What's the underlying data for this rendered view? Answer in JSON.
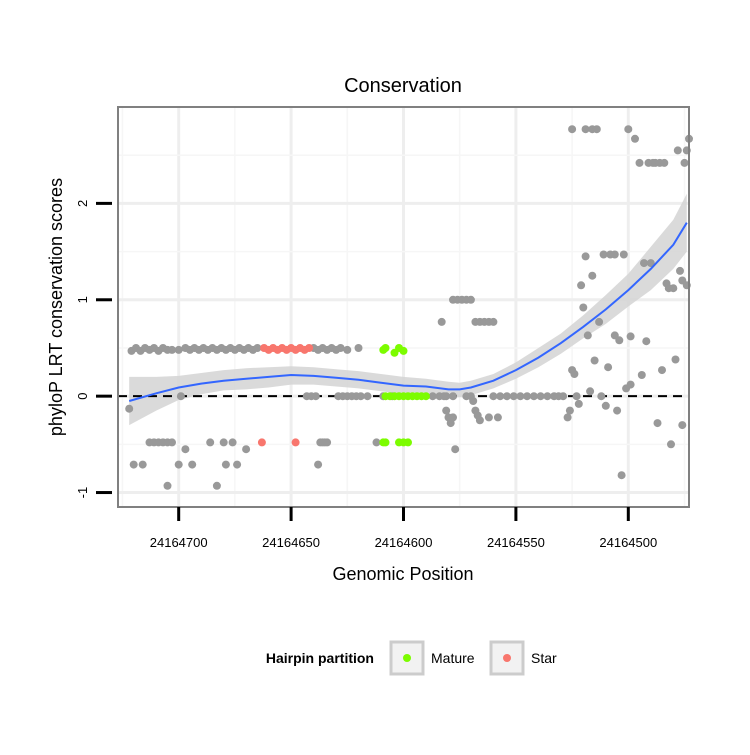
{
  "chart_data": {
    "type": "scatter",
    "title": "Conservation",
    "xlabel": "Genomic Position",
    "ylabel": "phyloP LRT conservation scores",
    "x_reversed": true,
    "xlim": [
      24164727,
      24164473
    ],
    "ylim": [
      -1.15,
      3.0
    ],
    "x_ticks": [
      24164700,
      24164650,
      24164600,
      24164550,
      24164500
    ],
    "x_tick_labels": [
      "24164700",
      "24164650",
      "24164600",
      "24164550",
      "24164500"
    ],
    "y_ticks": [
      -1,
      0,
      1,
      2
    ],
    "y_tick_labels": [
      "-1",
      "0",
      "1",
      "2"
    ],
    "reference_line": {
      "y": 0,
      "style": "dashed"
    },
    "legend": {
      "title": "Hairpin partition",
      "position": "bottom",
      "entries": [
        {
          "label": "Mature",
          "color": "#7CFC00"
        },
        {
          "label": "Star",
          "color": "#F8766D"
        }
      ]
    },
    "colors": {
      "other": "#999999",
      "mature": "#7CFC00",
      "star": "#F8766D",
      "smooth": "#3366FF",
      "band": "#D3D3D3"
    },
    "series": [
      {
        "name": "Other",
        "color": "#999999",
        "points": [
          [
            24164722,
            -0.13
          ],
          [
            24164720,
            -0.71
          ],
          [
            24164716,
            -0.71
          ],
          [
            24164721,
            0.47
          ],
          [
            24164719,
            0.5
          ],
          [
            24164717,
            0.47
          ],
          [
            24164715,
            0.5
          ],
          [
            24164713,
            0.48
          ],
          [
            24164711,
            0.5
          ],
          [
            24164709,
            0.47
          ],
          [
            24164707,
            0.5
          ],
          [
            24164705,
            0.48
          ],
          [
            24164703,
            0.48
          ],
          [
            24164713,
            -0.48
          ],
          [
            24164711,
            -0.48
          ],
          [
            24164709,
            -0.48
          ],
          [
            24164707,
            -0.48
          ],
          [
            24164705,
            -0.48
          ],
          [
            24164703,
            -0.48
          ],
          [
            24164705,
            -0.93
          ],
          [
            24164700,
            -0.71
          ],
          [
            24164700,
            0.48
          ],
          [
            24164699,
            0.0
          ],
          [
            24164697,
            0.5
          ],
          [
            24164695,
            0.48
          ],
          [
            24164693,
            0.5
          ],
          [
            24164691,
            0.48
          ],
          [
            24164689,
            0.5
          ],
          [
            24164687,
            0.48
          ],
          [
            24164685,
            0.5
          ],
          [
            24164683,
            0.48
          ],
          [
            24164681,
            0.5
          ],
          [
            24164679,
            0.48
          ],
          [
            24164677,
            0.5
          ],
          [
            24164675,
            0.48
          ],
          [
            24164673,
            0.5
          ],
          [
            24164671,
            0.48
          ],
          [
            24164669,
            0.5
          ],
          [
            24164667,
            0.48
          ],
          [
            24164665,
            0.5
          ],
          [
            24164697,
            -0.55
          ],
          [
            24164694,
            -0.71
          ],
          [
            24164686,
            -0.48
          ],
          [
            24164680,
            -0.48
          ],
          [
            24164679,
            -0.71
          ],
          [
            24164676,
            -0.48
          ],
          [
            24164674,
            -0.71
          ],
          [
            24164683,
            -0.93
          ],
          [
            24164670,
            -0.55
          ],
          [
            24164640,
            0.5
          ],
          [
            24164638,
            0.48
          ],
          [
            24164636,
            0.5
          ],
          [
            24164634,
            0.48
          ],
          [
            24164632,
            0.5
          ],
          [
            24164630,
            0.48
          ],
          [
            24164628,
            0.5
          ],
          [
            24164625,
            0.48
          ],
          [
            24164620,
            0.5
          ],
          [
            24164637,
            -0.48
          ],
          [
            24164636,
            -0.48
          ],
          [
            24164638,
            -0.71
          ],
          [
            24164635,
            -0.48
          ],
          [
            24164634,
            -0.48
          ],
          [
            24164629,
            0.0
          ],
          [
            24164627,
            0.0
          ],
          [
            24164625,
            0.0
          ],
          [
            24164623,
            0.0
          ],
          [
            24164621,
            0.0
          ],
          [
            24164619,
            0.0
          ],
          [
            24164616,
            0.0
          ],
          [
            24164612,
            -0.48
          ],
          [
            24164609,
            0.0
          ],
          [
            24164605,
            0.0
          ],
          [
            24164587,
            0.0
          ],
          [
            24164584,
            0.0
          ],
          [
            24164581,
            0.0
          ],
          [
            24164578,
            0.0
          ],
          [
            24164583,
            0.77
          ],
          [
            24164582,
            0.0
          ],
          [
            24164581,
            -0.15
          ],
          [
            24164580,
            -0.22
          ],
          [
            24164579,
            -0.28
          ],
          [
            24164578,
            -0.22
          ],
          [
            24164577,
            -0.55
          ],
          [
            24164578,
            1.0
          ],
          [
            24164576,
            1.0
          ],
          [
            24164574,
            1.0
          ],
          [
            24164572,
            1.0
          ],
          [
            24164570,
            1.0
          ],
          [
            24164572,
            0.0
          ],
          [
            24164570,
            0.0
          ],
          [
            24164569,
            -0.05
          ],
          [
            24164568,
            -0.15
          ],
          [
            24164567,
            -0.2
          ],
          [
            24164566,
            -0.25
          ],
          [
            24164568,
            0.77
          ],
          [
            24164566,
            0.77
          ],
          [
            24164564,
            0.77
          ],
          [
            24164562,
            0.77
          ],
          [
            24164560,
            0.77
          ],
          [
            24164562,
            -0.22
          ],
          [
            24164558,
            -0.22
          ],
          [
            24164560,
            0.0
          ],
          [
            24164557,
            0.0
          ],
          [
            24164554,
            0.0
          ],
          [
            24164551,
            0.0
          ],
          [
            24164548,
            0.0
          ],
          [
            24164545,
            0.0
          ],
          [
            24164542,
            0.0
          ],
          [
            24164539,
            0.0
          ],
          [
            24164536,
            0.0
          ],
          [
            24164533,
            0.0
          ],
          [
            24164531,
            0.0
          ],
          [
            24164529,
            0.0
          ],
          [
            24164527,
            -0.22
          ],
          [
            24164526,
            -0.15
          ],
          [
            24164525,
            0.27
          ],
          [
            24164524,
            0.23
          ],
          [
            24164523,
            0.0
          ],
          [
            24164522,
            -0.08
          ],
          [
            24164521,
            1.15
          ],
          [
            24164520,
            0.92
          ],
          [
            24164519,
            1.45
          ],
          [
            24164518,
            0.63
          ],
          [
            24164517,
            0.05
          ],
          [
            24164516,
            1.25
          ],
          [
            24164515,
            0.37
          ],
          [
            24164525,
            2.77
          ],
          [
            24164519,
            2.77
          ],
          [
            24164516,
            2.77
          ],
          [
            24164514,
            2.77
          ],
          [
            24164513,
            0.77
          ],
          [
            24164512,
            0.0
          ],
          [
            24164511,
            1.47
          ],
          [
            24164510,
            -0.1
          ],
          [
            24164509,
            0.3
          ],
          [
            24164508,
            1.47
          ],
          [
            24164506,
            1.47
          ],
          [
            24164505,
            -0.15
          ],
          [
            24164506,
            0.63
          ],
          [
            24164504,
            0.58
          ],
          [
            24164503,
            -0.82
          ],
          [
            24164502,
            1.47
          ],
          [
            24164501,
            0.08
          ],
          [
            24164500,
            2.77
          ],
          [
            24164499,
            0.62
          ],
          [
            24164499,
            0.12
          ],
          [
            24164497,
            2.67
          ],
          [
            24164495,
            2.42
          ],
          [
            24164494,
            0.22
          ],
          [
            24164493,
            1.38
          ],
          [
            24164492,
            0.57
          ],
          [
            24164491,
            2.42
          ],
          [
            24164490,
            1.38
          ],
          [
            24164489,
            2.42
          ],
          [
            24164488,
            2.42
          ],
          [
            24164487,
            -0.28
          ],
          [
            24164486,
            2.42
          ],
          [
            24164485,
            0.27
          ],
          [
            24164484,
            2.42
          ],
          [
            24164483,
            1.17
          ],
          [
            24164482,
            1.12
          ],
          [
            24164481,
            -0.5
          ],
          [
            24164480,
            1.12
          ],
          [
            24164479,
            0.38
          ],
          [
            24164478,
            2.55
          ],
          [
            24164477,
            1.3
          ],
          [
            24164476,
            1.2
          ],
          [
            24164475,
            2.42
          ],
          [
            24164474,
            1.15
          ],
          [
            24164476,
            -0.3
          ],
          [
            24164473,
            2.67
          ],
          [
            24164474,
            2.55
          ],
          [
            24164643,
            0.0
          ],
          [
            24164641,
            0.0
          ],
          [
            24164639,
            0.0
          ]
        ]
      },
      {
        "name": "Mature",
        "color": "#7CFC00",
        "points": [
          [
            24164609,
            0.48
          ],
          [
            24164608,
            0.5
          ],
          [
            24164604,
            0.45
          ],
          [
            24164602,
            0.5
          ],
          [
            24164600,
            0.47
          ],
          [
            24164609,
            -0.48
          ],
          [
            24164608,
            -0.48
          ],
          [
            24164602,
            -0.48
          ],
          [
            24164600,
            -0.48
          ],
          [
            24164598,
            -0.48
          ],
          [
            24164608,
            0.0
          ],
          [
            24164606,
            0.0
          ],
          [
            24164604,
            0.0
          ],
          [
            24164602,
            0.0
          ],
          [
            24164600,
            0.0
          ],
          [
            24164598,
            0.0
          ],
          [
            24164596,
            0.0
          ],
          [
            24164594,
            0.0
          ],
          [
            24164592,
            0.0
          ],
          [
            24164590,
            0.0
          ]
        ]
      },
      {
        "name": "Star",
        "color": "#F8766D",
        "points": [
          [
            24164662,
            0.5
          ],
          [
            24164660,
            0.48
          ],
          [
            24164658,
            0.5
          ],
          [
            24164656,
            0.48
          ],
          [
            24164654,
            0.5
          ],
          [
            24164652,
            0.48
          ],
          [
            24164650,
            0.5
          ],
          [
            24164648,
            0.48
          ],
          [
            24164646,
            0.5
          ],
          [
            24164644,
            0.48
          ],
          [
            24164642,
            0.5
          ],
          [
            24164663,
            -0.48
          ],
          [
            24164648,
            -0.48
          ]
        ]
      }
    ],
    "smooth_line": {
      "x": [
        24164722,
        24164710,
        24164700,
        24164690,
        24164680,
        24164670,
        24164660,
        24164650,
        24164640,
        24164630,
        24164620,
        24164610,
        24164600,
        24164590,
        24164580,
        24164575,
        24164570,
        24164560,
        24164550,
        24164540,
        24164530,
        24164520,
        24164510,
        24164500,
        24164490,
        24164480,
        24164474
      ],
      "y": [
        -0.05,
        0.03,
        0.09,
        0.13,
        0.16,
        0.18,
        0.2,
        0.22,
        0.21,
        0.19,
        0.17,
        0.14,
        0.11,
        0.1,
        0.07,
        0.07,
        0.09,
        0.16,
        0.27,
        0.4,
        0.55,
        0.72,
        0.9,
        1.1,
        1.32,
        1.57,
        1.8
      ],
      "ci_upper": [
        0.2,
        0.2,
        0.21,
        0.24,
        0.27,
        0.29,
        0.3,
        0.31,
        0.3,
        0.28,
        0.26,
        0.23,
        0.2,
        0.18,
        0.15,
        0.14,
        0.16,
        0.23,
        0.35,
        0.5,
        0.65,
        0.84,
        1.05,
        1.27,
        1.55,
        1.83,
        2.1
      ],
      "ci_lower": [
        -0.3,
        -0.15,
        -0.04,
        0.02,
        0.06,
        0.07,
        0.09,
        0.12,
        0.12,
        0.1,
        0.08,
        0.05,
        0.02,
        0.01,
        -0.01,
        -0.01,
        0.01,
        0.08,
        0.18,
        0.3,
        0.44,
        0.6,
        0.75,
        0.93,
        1.1,
        1.32,
        1.5
      ]
    }
  }
}
